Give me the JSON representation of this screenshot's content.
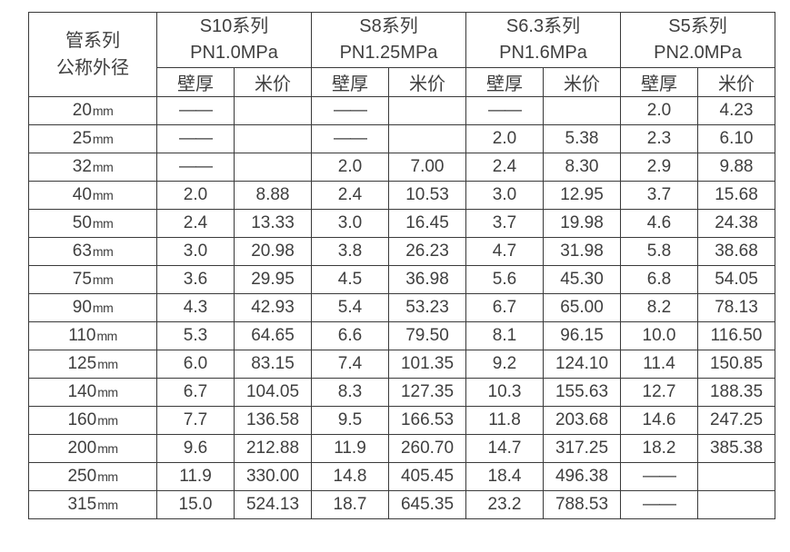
{
  "colors": {
    "border": "#3a3a3a",
    "text": "#3f3f3f",
    "background": "#ffffff"
  },
  "table": {
    "corner_header": {
      "line1": "管系列",
      "line2": "公称外径"
    },
    "series": [
      {
        "name": "S10系列",
        "pressure": "PN1.0MPa"
      },
      {
        "name": "S8系列",
        "pressure": "PN1.25MPa"
      },
      {
        "name": "S6.3系列",
        "pressure": "PN1.6MPa"
      },
      {
        "name": "S5系列",
        "pressure": "PN2.0MPa"
      }
    ],
    "sub_headers": {
      "thickness": "壁厚",
      "price": "米价"
    },
    "dash": "——",
    "rows": [
      {
        "size": "20",
        "unit": "mm",
        "cells": [
          "——",
          "",
          "——",
          "",
          "——",
          "",
          "2.0",
          "4.23"
        ]
      },
      {
        "size": "25",
        "unit": "mm",
        "cells": [
          "——",
          "",
          "——",
          "",
          "2.0",
          "5.38",
          "2.3",
          "6.10"
        ]
      },
      {
        "size": "32",
        "unit": "mm",
        "cells": [
          "——",
          "",
          "2.0",
          "7.00",
          "2.4",
          "8.30",
          "2.9",
          "9.88"
        ]
      },
      {
        "size": "40",
        "unit": "mm",
        "cells": [
          "2.0",
          "8.88",
          "2.4",
          "10.53",
          "3.0",
          "12.95",
          "3.7",
          "15.68"
        ]
      },
      {
        "size": "50",
        "unit": "mm",
        "cells": [
          "2.4",
          "13.33",
          "3.0",
          "16.45",
          "3.7",
          "19.98",
          "4.6",
          "24.38"
        ]
      },
      {
        "size": "63",
        "unit": "mm",
        "cells": [
          "3.0",
          "20.98",
          "3.8",
          "26.23",
          "4.7",
          "31.98",
          "5.8",
          "38.68"
        ]
      },
      {
        "size": "75",
        "unit": "mm",
        "cells": [
          "3.6",
          "29.95",
          "4.5",
          "36.98",
          "5.6",
          "45.30",
          "6.8",
          "54.05"
        ]
      },
      {
        "size": "90",
        "unit": "mm",
        "cells": [
          "4.3",
          "42.93",
          "5.4",
          "53.23",
          "6.7",
          "65.00",
          "8.2",
          "78.13"
        ]
      },
      {
        "size": "110",
        "unit": "mm",
        "cells": [
          "5.3",
          "64.65",
          "6.6",
          "79.50",
          "8.1",
          "96.15",
          "10.0",
          "116.50"
        ]
      },
      {
        "size": "125",
        "unit": "mm",
        "cells": [
          "6.0",
          "83.15",
          "7.4",
          "101.35",
          "9.2",
          "124.10",
          "11.4",
          "150.85"
        ]
      },
      {
        "size": "140",
        "unit": "mm",
        "cells": [
          "6.7",
          "104.05",
          "8.3",
          "127.35",
          "10.3",
          "155.63",
          "12.7",
          "188.35"
        ]
      },
      {
        "size": "160",
        "unit": "mm",
        "cells": [
          "7.7",
          "136.58",
          "9.5",
          "166.53",
          "11.8",
          "203.68",
          "14.6",
          "247.25"
        ]
      },
      {
        "size": "200",
        "unit": "mm",
        "cells": [
          "9.6",
          "212.88",
          "11.9",
          "260.70",
          "14.7",
          "317.25",
          "18.2",
          "385.38"
        ]
      },
      {
        "size": "250",
        "unit": "mm",
        "cells": [
          "11.9",
          "330.00",
          "14.8",
          "405.45",
          "18.4",
          "496.38",
          "——",
          ""
        ]
      },
      {
        "size": "315",
        "unit": "mm",
        "cells": [
          "15.0",
          "524.13",
          "18.7",
          "645.35",
          "23.2",
          "788.53",
          "——",
          ""
        ]
      }
    ]
  }
}
